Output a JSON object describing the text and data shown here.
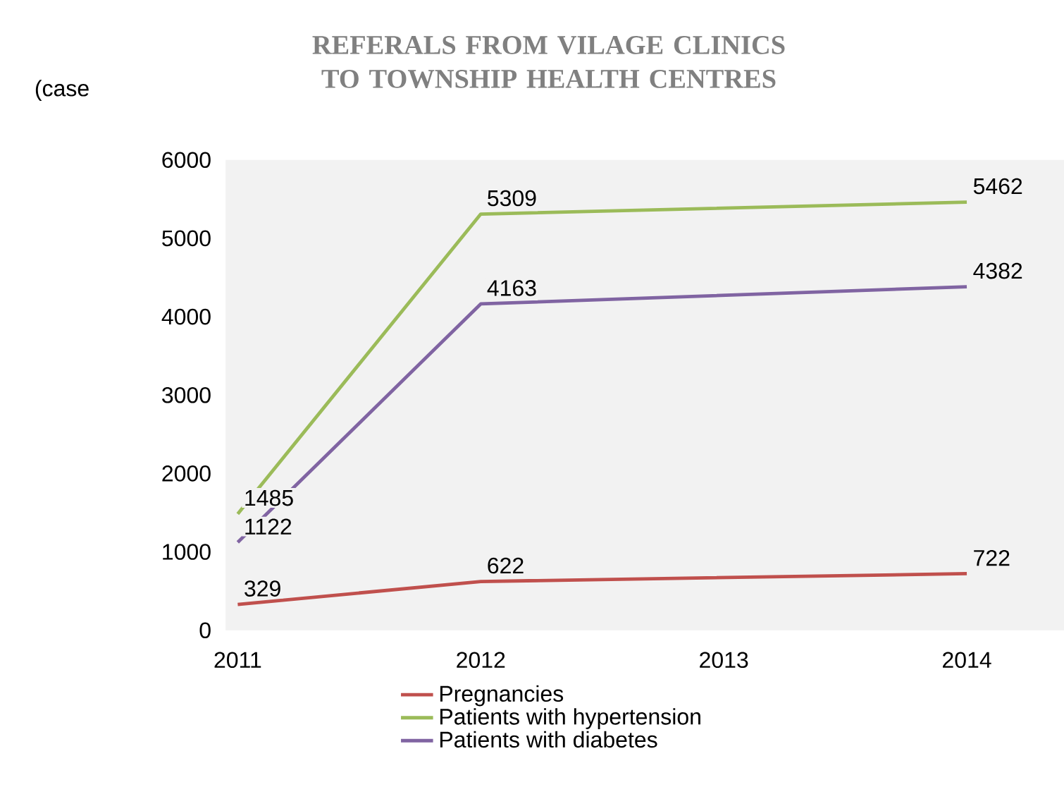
{
  "chart_data": {
    "type": "line",
    "title": "REFERALS FROM VILAGE CLINICS TO  TOWNSHIP HEALTH CENTRES",
    "ylabel": "(case",
    "x": [
      2011,
      2012,
      2014
    ],
    "xlim": [
      2010.95,
      2014.4
    ],
    "xticks": [
      2011,
      2012,
      2013,
      2014
    ],
    "ylim": [
      0,
      6000
    ],
    "yticks": [
      0,
      1000,
      2000,
      3000,
      4000,
      5000,
      6000
    ],
    "series": [
      {
        "name": "Pregnancies",
        "color": "#c0504d",
        "values": [
          329,
          622,
          722
        ]
      },
      {
        "name": "Patients with hypertension",
        "color": "#9bbb59",
        "values": [
          1485,
          5309,
          5462
        ]
      },
      {
        "name": "Patients with diabetes",
        "color": "#8064a2",
        "values": [
          1122,
          4163,
          4382
        ]
      }
    ],
    "data_labels": true,
    "legend": "bottom",
    "grid": false
  }
}
